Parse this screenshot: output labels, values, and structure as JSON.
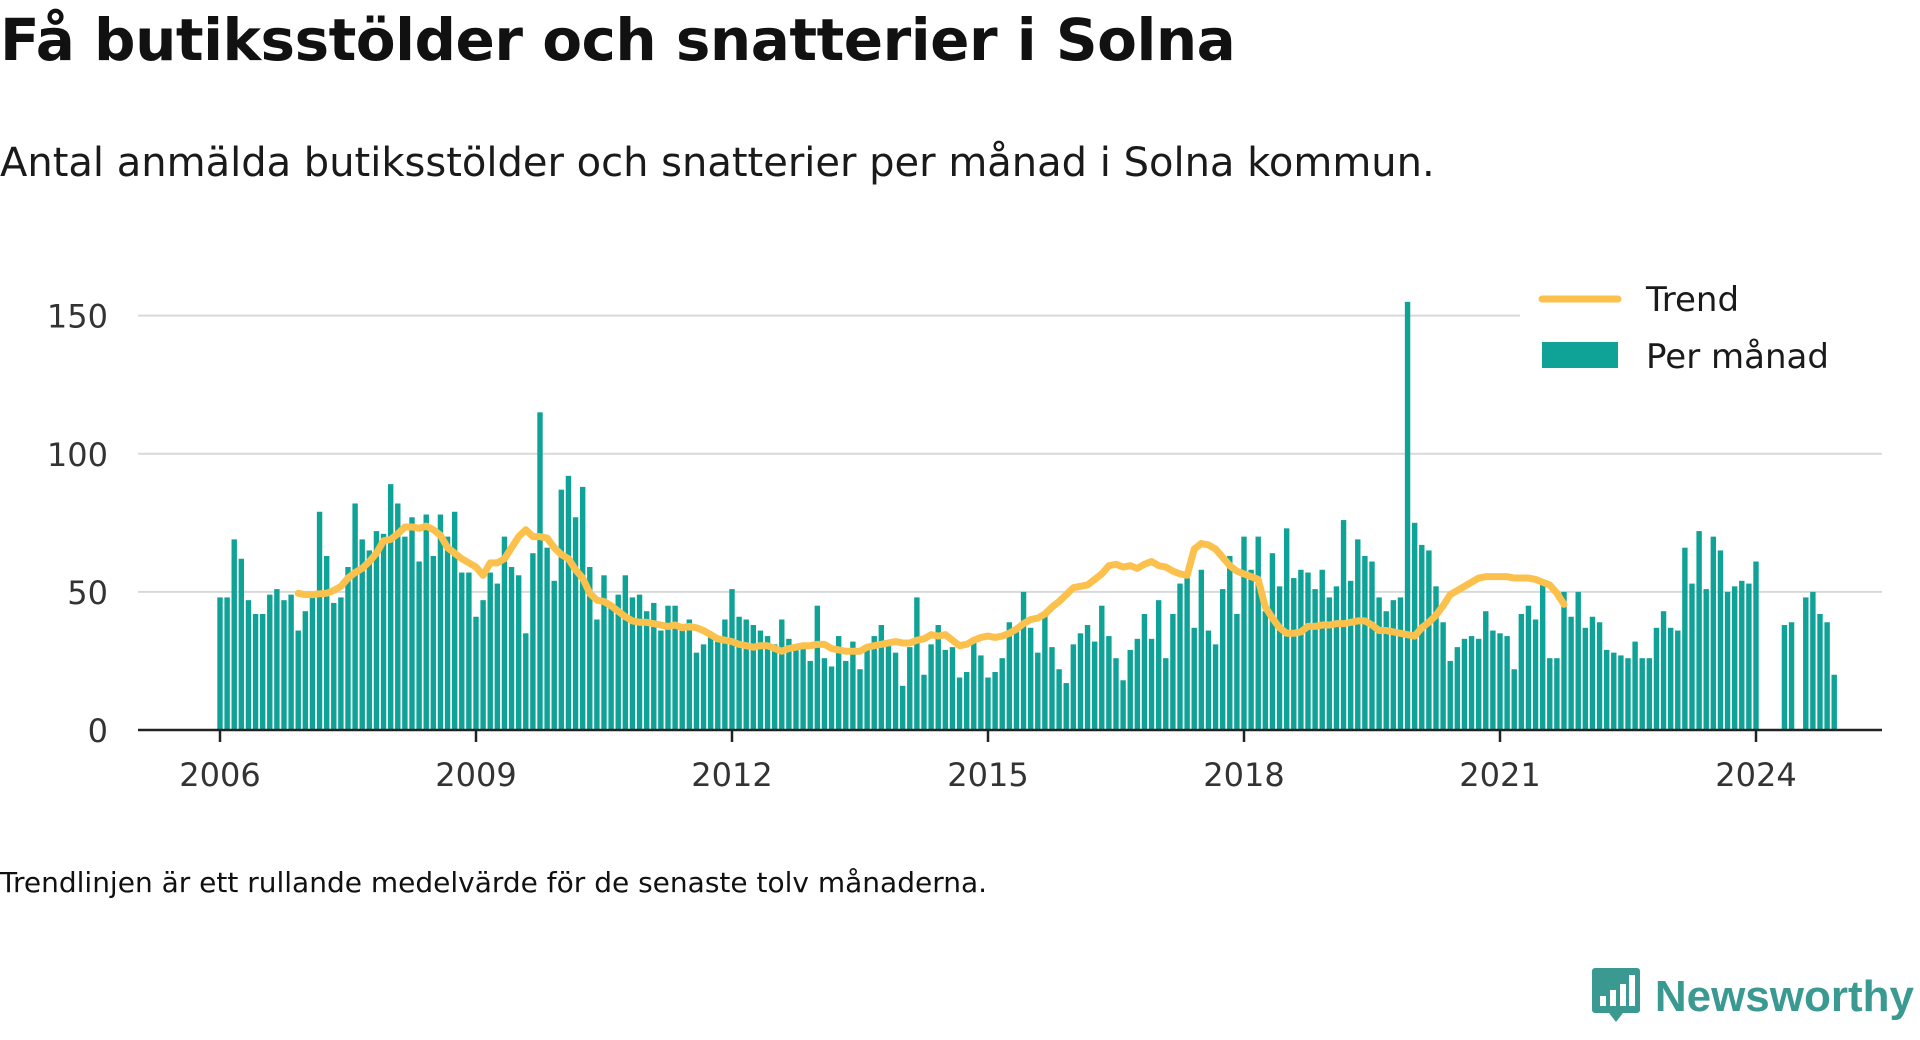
{
  "title": "Få butiksstölder och snatterier i Solna",
  "subtitle": "Antal anmälda butiksstölder och snatterier per månad i Solna kommun.",
  "note": "Trendlinjen är ett rullande medelvärde för de senaste tolv månaderna.",
  "brand": {
    "name": "Newsworthy",
    "logo_icon": "bar-chart-icon"
  },
  "colors": {
    "bar": "#0fa397",
    "trend": "#fcc14d",
    "grid": "#d9d9d9",
    "axis": "#222222",
    "brand": "#3a9a91"
  },
  "chart_data": {
    "type": "bar",
    "x_start": "2006-01",
    "x_ticks": [
      "2006",
      "2009",
      "2012",
      "2015",
      "2018",
      "2021",
      "2024"
    ],
    "y_ticks": [
      "0",
      "50",
      "100",
      "150"
    ],
    "ylim": [
      0,
      160
    ],
    "grid": true,
    "legend_position": "top-right",
    "series": [
      {
        "name": "Per månad",
        "kind": "bar",
        "values": [
          48,
          48,
          69,
          62,
          47,
          42,
          42,
          49,
          51,
          47,
          49,
          36,
          43,
          48,
          79,
          63,
          46,
          48,
          59,
          82,
          69,
          65,
          72,
          71,
          89,
          82,
          70,
          77,
          61,
          78,
          63,
          78,
          70,
          79,
          57,
          57,
          41,
          47,
          57,
          53,
          70,
          59,
          56,
          35,
          64,
          115,
          66,
          54,
          87,
          92,
          77,
          88,
          59,
          40,
          56,
          45,
          49,
          56,
          48,
          49,
          43,
          46,
          36,
          45,
          45,
          38,
          40,
          28,
          31,
          34,
          32,
          40,
          51,
          41,
          40,
          38,
          36,
          34,
          31,
          40,
          33,
          30,
          30,
          25,
          45,
          26,
          23,
          34,
          25,
          32,
          22,
          29,
          34,
          38,
          32,
          28,
          16,
          30,
          48,
          20,
          31,
          38,
          29,
          30,
          19,
          21,
          33,
          27,
          19,
          21,
          26,
          39,
          37,
          50,
          37,
          28,
          42,
          30,
          22,
          17,
          31,
          35,
          38,
          32,
          45,
          34,
          26,
          18,
          29,
          33,
          42,
          33,
          47,
          26,
          42,
          53,
          55,
          37,
          58,
          36,
          31,
          51,
          63,
          42,
          70,
          58,
          70,
          43,
          64,
          52,
          73,
          55,
          58,
          57,
          51,
          58,
          48,
          52,
          76,
          54,
          69,
          63,
          61,
          48,
          43,
          47,
          48,
          155,
          75,
          67,
          65,
          52,
          39,
          25,
          30,
          33,
          34,
          33,
          43,
          36,
          35,
          34,
          22,
          42,
          45,
          40,
          53,
          26,
          26,
          50,
          41,
          50,
          37,
          41,
          39,
          29,
          28,
          27,
          26,
          32,
          26,
          26,
          37,
          43,
          37,
          36,
          66,
          53,
          72,
          51,
          70,
          65,
          50,
          52,
          54,
          53,
          61,
          null,
          null,
          null,
          38,
          39,
          null,
          48,
          50,
          42,
          39,
          20
        ]
      },
      {
        "name": "Trend",
        "kind": "line",
        "start": "2006-12",
        "values": [
          49.5,
          49,
          49,
          49.3,
          49.5,
          50.5,
          52,
          55,
          57,
          58.5,
          61,
          64,
          68.5,
          69,
          71,
          73.5,
          73.5,
          73,
          73.8,
          72.5,
          70.5,
          66,
          64,
          62,
          60.5,
          59,
          56,
          60.5,
          60.5,
          62,
          66,
          70,
          72.5,
          70,
          70,
          69.5,
          66,
          63.5,
          62,
          58,
          55,
          49.5,
          47,
          46.5,
          45,
          43,
          41,
          39.5,
          39,
          39,
          38.5,
          38,
          37.5,
          38,
          37,
          37.5,
          37,
          36,
          34.5,
          33,
          32.5,
          32,
          31,
          30.5,
          30,
          30.5,
          30.5,
          29.5,
          28.5,
          29.5,
          30,
          30.5,
          30.5,
          31,
          31,
          29.5,
          29,
          28.5,
          28.5,
          28.5,
          30,
          30.5,
          31,
          31.5,
          32,
          31.5,
          31.5,
          32.5,
          33,
          34.5,
          34,
          34.5,
          32.5,
          30.5,
          31,
          32.5,
          33.5,
          34,
          33.5,
          34,
          35,
          36.5,
          38.5,
          40,
          40.5,
          42,
          44.5,
          46.5,
          49,
          51.5,
          52,
          52.5,
          54.5,
          56.5,
          59.5,
          60,
          59,
          59.5,
          58.5,
          60,
          61,
          59.5,
          59,
          57.5,
          56.5,
          56,
          65.5,
          67.5,
          67,
          65.5,
          62.5,
          59.5,
          57.5,
          56.5,
          55.5,
          54.5,
          44.5,
          40.5,
          37,
          35,
          35,
          35.5,
          37.5,
          37.5,
          38,
          38,
          38.5,
          38.5,
          39,
          39.5,
          39.5,
          38,
          36,
          36,
          35.5,
          35,
          34.5,
          34,
          37,
          39,
          41.5,
          45,
          49,
          50.5,
          52,
          53.5,
          55,
          55.5,
          55.5,
          55.5,
          55.5,
          55,
          55,
          55,
          54.5,
          53.5,
          52.5,
          49.5,
          45.5
        ]
      }
    ]
  }
}
